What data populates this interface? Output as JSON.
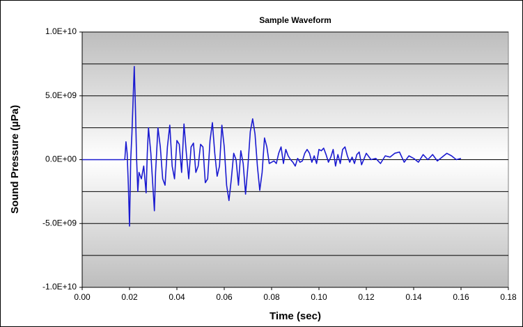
{
  "chart_data": {
    "type": "line",
    "title": "Sample Waveform",
    "xlabel": "Time (sec)",
    "ylabel": "Sound Pressure (µPa)",
    "xlim": [
      0,
      0.18
    ],
    "xticks": [
      {
        "value": 0,
        "label": "0.00"
      },
      0.02,
      0.04,
      0.06,
      0.08,
      {
        "value": 0.1,
        "label": "0.10"
      },
      0.12,
      0.14,
      0.16,
      0.18
    ],
    "ylim": [
      -10000000000,
      10000000000
    ],
    "yticks": [
      {
        "value": -10000000000,
        "label": "-1.0E+10"
      },
      {
        "value": -5000000000,
        "label": "-5.0E+09"
      },
      {
        "value": 0,
        "label": "0.0E+00"
      },
      {
        "value": 5000000000,
        "label": "5.0E+09"
      },
      {
        "value": 10000000000,
        "label": "1.0E+10"
      }
    ],
    "minor_yticks": [
      -7500000000,
      -2500000000,
      2500000000,
      7500000000
    ],
    "grid": true,
    "series": [
      {
        "name": "Sound Pressure",
        "color": "#1a1ad0",
        "x": [
          0,
          0.01,
          0.018,
          0.0185,
          0.019,
          0.0195,
          0.02,
          0.0205,
          0.021,
          0.022,
          0.0225,
          0.023,
          0.0235,
          0.024,
          0.025,
          0.026,
          0.027,
          0.0275,
          0.028,
          0.029,
          0.03,
          0.0305,
          0.031,
          0.032,
          0.033,
          0.034,
          0.035,
          0.036,
          0.037,
          0.038,
          0.039,
          0.04,
          0.041,
          0.042,
          0.043,
          0.044,
          0.045,
          0.046,
          0.047,
          0.048,
          0.049,
          0.05,
          0.051,
          0.052,
          0.053,
          0.054,
          0.055,
          0.056,
          0.057,
          0.058,
          0.059,
          0.06,
          0.061,
          0.062,
          0.063,
          0.064,
          0.065,
          0.066,
          0.067,
          0.068,
          0.069,
          0.07,
          0.071,
          0.072,
          0.073,
          0.074,
          0.075,
          0.076,
          0.077,
          0.078,
          0.079,
          0.08,
          0.081,
          0.082,
          0.083,
          0.084,
          0.085,
          0.086,
          0.087,
          0.088,
          0.089,
          0.09,
          0.091,
          0.092,
          0.093,
          0.094,
          0.095,
          0.096,
          0.097,
          0.098,
          0.099,
          0.1,
          0.101,
          0.102,
          0.103,
          0.104,
          0.105,
          0.106,
          0.107,
          0.108,
          0.109,
          0.11,
          0.111,
          0.112,
          0.113,
          0.114,
          0.115,
          0.116,
          0.117,
          0.118,
          0.12,
          0.122,
          0.124,
          0.126,
          0.128,
          0.13,
          0.132,
          0.134,
          0.136,
          0.138,
          0.14,
          0.142,
          0.144,
          0.146,
          0.148,
          0.15,
          0.152,
          0.154,
          0.156,
          0.158,
          0.16
        ],
        "values": [
          0,
          0,
          0,
          1400000000,
          500000000,
          -2000000000,
          -5200000000,
          0,
          2000000000,
          7300000000,
          4000000000,
          0,
          -2500000000,
          -1000000000,
          -1500000000,
          -500000000,
          -2600000000,
          500000000,
          2500000000,
          500000000,
          -2500000000,
          -4000000000,
          -1000000000,
          2500000000,
          1000000000,
          -1500000000,
          -2000000000,
          1000000000,
          2700000000,
          -500000000,
          -1500000000,
          1500000000,
          1200000000,
          -1000000000,
          2800000000,
          500000000,
          -1500000000,
          1000000000,
          1300000000,
          -1000000000,
          -500000000,
          1200000000,
          1000000000,
          -1800000000,
          -1500000000,
          1500000000,
          2900000000,
          500000000,
          -1300000000,
          -500000000,
          2700000000,
          1000000000,
          -2000000000,
          -3200000000,
          -1500000000,
          500000000,
          0,
          -2000000000,
          700000000,
          -300000000,
          -2700000000,
          -500000000,
          2200000000,
          3200000000,
          2000000000,
          -500000000,
          -2400000000,
          -1000000000,
          1700000000,
          1000000000,
          -300000000,
          -200000000,
          -100000000,
          -300000000,
          500000000,
          1000000000,
          -300000000,
          800000000,
          300000000,
          0,
          -200000000,
          -500000000,
          100000000,
          -200000000,
          -100000000,
          500000000,
          800000000,
          500000000,
          -200000000,
          300000000,
          -300000000,
          800000000,
          700000000,
          900000000,
          400000000,
          -200000000,
          200000000,
          800000000,
          -500000000,
          400000000,
          -300000000,
          800000000,
          1000000000,
          300000000,
          -200000000,
          200000000,
          -300000000,
          400000000,
          600000000,
          -400000000,
          500000000,
          0,
          100000000,
          -300000000,
          300000000,
          200000000,
          500000000,
          600000000,
          -200000000,
          300000000,
          100000000,
          -200000000,
          400000000,
          0,
          400000000,
          -100000000,
          200000000,
          500000000,
          300000000,
          0,
          100000000
        ]
      }
    ]
  }
}
